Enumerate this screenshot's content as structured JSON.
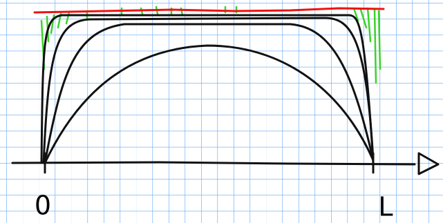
{
  "labels": {
    "origin": "0",
    "end": "L"
  }
}
